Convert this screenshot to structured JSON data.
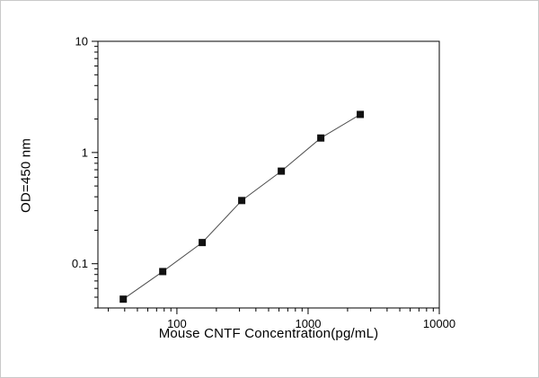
{
  "figure": {
    "background": "#ffffff",
    "frame_color": "#000000",
    "border_color": "#c9c9c9"
  },
  "chart_data": {
    "type": "scatter",
    "subtype": "line-with-square-markers",
    "x": [
      39,
      78,
      156,
      312,
      625,
      1250,
      2500
    ],
    "y": [
      0.048,
      0.085,
      0.155,
      0.37,
      0.68,
      1.35,
      2.2
    ],
    "xlabel": "Mouse CNTF Concentration(pg/mL)",
    "ylabel": "OD=450 nm",
    "x_scale": "log",
    "y_scale": "log",
    "xlim": [
      25,
      10000
    ],
    "ylim": [
      0.04,
      10
    ],
    "x_tick_values": [
      100,
      1000,
      10000
    ],
    "x_tick_labels": [
      "100",
      "1000",
      "10000"
    ],
    "y_tick_values": [
      0.1,
      1,
      10
    ],
    "y_tick_labels": [
      "0.1",
      "1",
      "10"
    ],
    "grid": false,
    "legend": false,
    "marker": "filled-square",
    "marker_color": "#111111",
    "line_color": "#4d4d4d",
    "tick_label_color": "#000000",
    "tick_label_size": 13
  }
}
